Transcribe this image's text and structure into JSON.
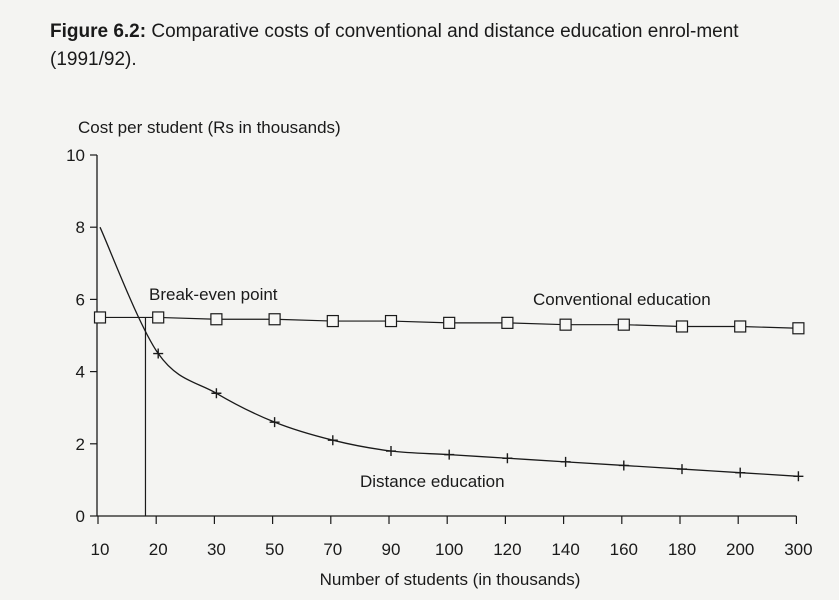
{
  "caption": {
    "label": "Figure 6.2:",
    "text": "Comparative costs of conventional and distance education enrol-ment (1991/92)."
  },
  "chart_data": {
    "type": "line",
    "title": "Figure 6.2: Comparative costs of conventional and distance education enrolment (1991/92).",
    "ylabel": "Cost per student (Rs in thousands)",
    "xlabel": "Number of students (in thousands)",
    "ylim": [
      0,
      10
    ],
    "yticks": [
      0,
      2,
      4,
      6,
      8,
      10
    ],
    "categories": [
      "10",
      "20",
      "30",
      "50",
      "70",
      "90",
      "100",
      "120",
      "140",
      "160",
      "180",
      "200",
      "300"
    ],
    "series": [
      {
        "name": "Conventional education",
        "marker": "square",
        "values": [
          5.5,
          5.5,
          5.45,
          5.45,
          5.4,
          5.4,
          5.35,
          5.35,
          5.3,
          5.3,
          5.25,
          5.25,
          5.2
        ]
      },
      {
        "name": "Distance education",
        "marker": "plus",
        "values": [
          8.0,
          4.5,
          3.4,
          2.6,
          2.1,
          1.8,
          1.7,
          1.6,
          1.5,
          1.4,
          1.3,
          1.2,
          1.1
        ]
      }
    ],
    "annotations": [
      {
        "text": "Break-even point",
        "x_index": 0.85,
        "y": 5.5
      }
    ],
    "grid": false
  }
}
